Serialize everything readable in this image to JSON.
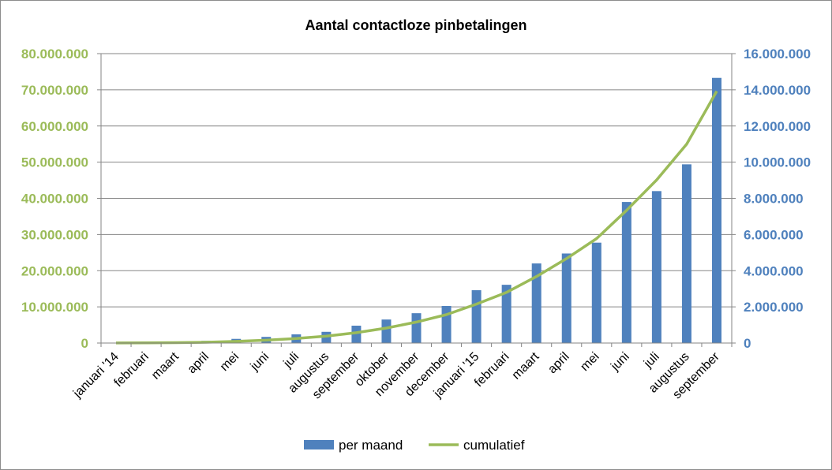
{
  "chart_data": {
    "type": "bar+line",
    "title": "Aantal contactloze pinbetalingen",
    "categories": [
      "januari '14",
      "februari",
      "maart",
      "april",
      "mei",
      "juni",
      "juli",
      "augustus",
      "september",
      "oktober",
      "november",
      "december",
      "januari '15",
      "februari",
      "maart",
      "april",
      "mei",
      "juni",
      "juli",
      "augustus",
      "september"
    ],
    "series": [
      {
        "name": "per maand",
        "type": "bar",
        "axis": "right",
        "color": "#4f81bd",
        "values": [
          20000,
          30000,
          50000,
          120000,
          230000,
          340000,
          480000,
          620000,
          960000,
          1300000,
          1650000,
          2050000,
          2920000,
          3220000,
          4400000,
          4950000,
          5550000,
          7800000,
          8400000,
          9880000,
          14660000
        ]
      },
      {
        "name": "cumulatief",
        "type": "line",
        "axis": "left",
        "color": "#9bbb59",
        "values": [
          20000,
          50000,
          100000,
          220000,
          450000,
          790000,
          1270000,
          1890000,
          2850000,
          4150000,
          5800000,
          7850000,
          10770000,
          13990000,
          18390000,
          23340000,
          28890000,
          36690000,
          45090000,
          54970000,
          69630000
        ]
      }
    ],
    "y_left": {
      "range": [
        0,
        80000000
      ],
      "ticks": [
        "0",
        "10.000.000",
        "20.000.000",
        "30.000.000",
        "40.000.000",
        "50.000.000",
        "60.000.000",
        "70.000.000",
        "80.000.000"
      ],
      "color": "#9bbb59"
    },
    "y_right": {
      "range": [
        0,
        16000000
      ],
      "ticks": [
        "0",
        "2.000.000",
        "4.000.000",
        "6.000.000",
        "8.000.000",
        "10.000.000",
        "12.000.000",
        "14.000.000",
        "16.000.000"
      ],
      "color": "#4f81bd"
    },
    "grid": true,
    "legend_position": "bottom"
  }
}
